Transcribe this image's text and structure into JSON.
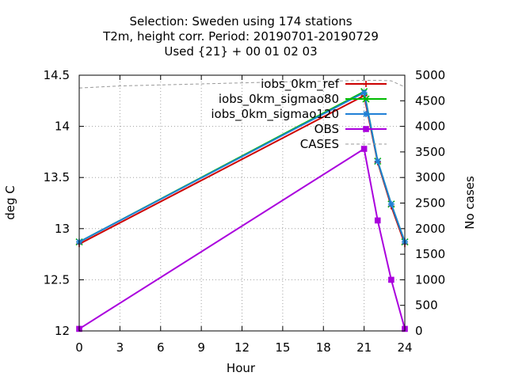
{
  "chart_data": {
    "type": "line",
    "title_lines": [
      "Selection: Sweden using   174 stations",
      "T2m, height corr.   Period: 20190701-20190729",
      "Used {21} + 00 01 02 03"
    ],
    "xlabel": "Hour",
    "ylabel": "deg C",
    "y2label": "No cases",
    "xlim": [
      0,
      24
    ],
    "ylim": [
      12,
      14.5
    ],
    "y2lim": [
      0,
      5000
    ],
    "x_ticks": [
      "0",
      "3",
      "6",
      "9",
      "12",
      "15",
      "18",
      "21",
      "24"
    ],
    "y_ticks": [
      "12",
      "12.5",
      "13",
      "13.5",
      "14",
      "14.5"
    ],
    "y2_ticks": [
      "0",
      "500",
      "1000",
      "1500",
      "2000",
      "2500",
      "3000",
      "3500",
      "4000",
      "4500",
      "5000"
    ],
    "grid": true,
    "legend_position": "top-right",
    "x": [
      0,
      21,
      22,
      23,
      24
    ],
    "series": [
      {
        "name": "iobs_0km_ref",
        "color": "#cc0000",
        "marker": "plus",
        "axis": "y",
        "values": [
          12.85,
          14.3,
          13.65,
          13.22,
          12.85
        ]
      },
      {
        "name": "iobs_0km_sigmao80",
        "color": "#00bb00",
        "marker": "cross",
        "axis": "y",
        "values": [
          12.87,
          14.34,
          13.66,
          13.24,
          12.87
        ]
      },
      {
        "name": "iobs_0km_sigmao120",
        "color": "#1f80d6",
        "marker": "asterisk",
        "axis": "y",
        "values": [
          12.87,
          14.33,
          13.66,
          13.24,
          12.87
        ]
      },
      {
        "name": "OBS",
        "color": "#aa00dd",
        "marker": "square",
        "axis": "y",
        "values": [
          12.02,
          13.78,
          13.08,
          12.5,
          12.02
        ]
      },
      {
        "name": "CASES",
        "color": "#999999",
        "marker": "none",
        "dash": true,
        "axis": "y2",
        "x": [
          0,
          3,
          6,
          9,
          12,
          15,
          18,
          21,
          22,
          23,
          24
        ],
        "values": [
          4750,
          4790,
          4810,
          4830,
          4850,
          4870,
          4880,
          4900,
          4900,
          4890,
          4770
        ]
      }
    ]
  }
}
